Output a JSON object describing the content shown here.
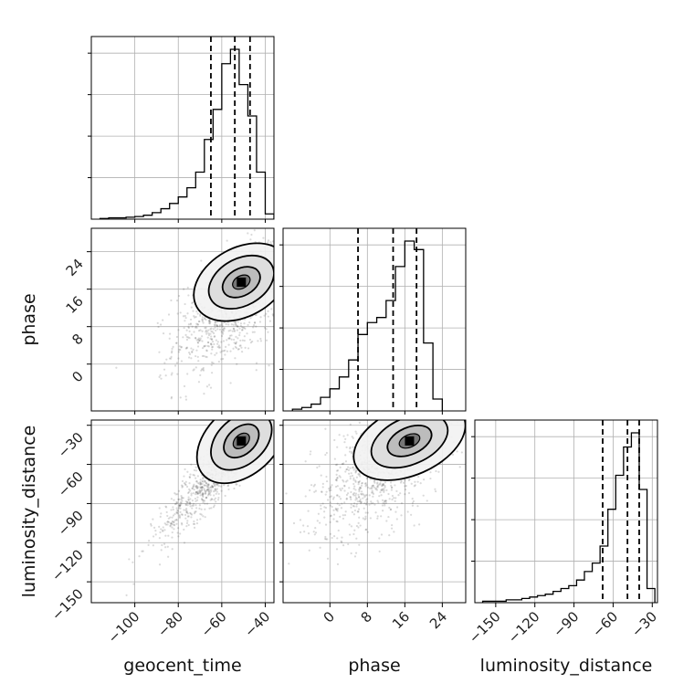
{
  "chart_data": {
    "type": "corner",
    "parameters": [
      "geocent_time",
      "phase",
      "luminosity_distance"
    ],
    "axis_labels": {
      "bottom": [
        "geocent_time",
        "phase",
        "luminosity_distance"
      ],
      "left": [
        "phase",
        "luminosity_distance"
      ]
    },
    "ranges": {
      "geocent_time": [
        -120,
        -36
      ],
      "phase": [
        -10,
        29
      ],
      "luminosity_distance": [
        -166,
        -26
      ]
    },
    "ticks": {
      "geocent_time": [
        -100,
        -80,
        -60,
        -40
      ],
      "phase": [
        0,
        8,
        16,
        24
      ],
      "luminosity_distance": [
        -150,
        -120,
        -90,
        -60,
        -30
      ]
    },
    "tick_labels": {
      "geocent_time": [
        "−100",
        "−80",
        "−60",
        "−40"
      ],
      "phase": [
        "0",
        "8",
        "16",
        "24"
      ],
      "luminosity_distance": [
        "−150",
        "−120",
        "−90",
        "−60",
        "−30"
      ]
    },
    "grid": true,
    "histograms": [
      {
        "parameter": "geocent_time",
        "bin_edges": [
          -116,
          -112,
          -108,
          -104,
          -100,
          -96,
          -92,
          -88,
          -84,
          -80,
          -76,
          -72,
          -68,
          -64,
          -60,
          -56,
          -52,
          -48,
          -44,
          -40,
          -36
        ],
        "counts": [
          0.5,
          1,
          1,
          1.5,
          2,
          3,
          5,
          8,
          12,
          17,
          24,
          36,
          61,
          84,
          119,
          130,
          103,
          79,
          36,
          4
        ],
        "quantiles": [
          -65,
          -54,
          -47
        ]
      },
      {
        "parameter": "phase",
        "bin_edges": [
          -8,
          -6,
          -4,
          -2,
          0,
          2,
          4,
          6,
          8,
          10,
          12,
          14,
          16,
          18,
          20,
          22,
          24
        ],
        "counts": [
          1,
          2,
          4,
          8,
          13,
          20,
          30,
          45,
          52,
          55,
          65,
          85,
          100,
          95,
          40,
          7
        ],
        "quantiles": [
          6,
          13.5,
          18.5
        ]
      },
      {
        "parameter": "luminosity_distance",
        "bin_edges": [
          -160,
          -154,
          -148,
          -142,
          -136,
          -130,
          -124,
          -118,
          -112,
          -106,
          -100,
          -94,
          -88,
          -82,
          -76,
          -70,
          -64,
          -58,
          -52,
          -46,
          -40,
          -34,
          -28
        ],
        "counts": [
          0.5,
          0.5,
          0.5,
          1,
          1,
          1.5,
          2,
          2.5,
          3,
          4,
          5,
          6,
          8,
          11,
          14,
          20,
          33,
          45,
          55,
          60,
          40,
          5
        ],
        "quantiles": [
          -68,
          -49,
          -40
        ]
      }
    ],
    "scatter_panels": [
      {
        "x": "geocent_time",
        "y": "phase",
        "mean": [
          -56,
          12
        ],
        "std": [
          13,
          7
        ],
        "corr": 0.55,
        "peak": [
          -51,
          17.5
        ]
      },
      {
        "x": "geocent_time",
        "y": "luminosity_distance",
        "mean": [
          -62,
          -65
        ],
        "std": [
          13,
          25
        ],
        "corr": 0.9,
        "peak": [
          -51,
          -42
        ]
      },
      {
        "x": "phase",
        "y": "luminosity_distance",
        "mean": [
          10,
          -65
        ],
        "std": [
          7,
          25
        ],
        "corr": 0.5,
        "peak": [
          17,
          -42
        ]
      }
    ]
  }
}
